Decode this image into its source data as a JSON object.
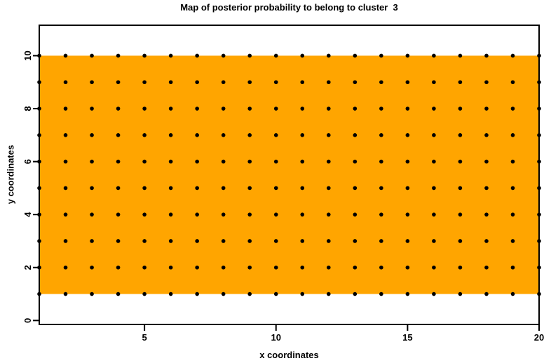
{
  "chart_data": {
    "type": "heatmap",
    "title": "Map of posterior probability to belong to cluster  3",
    "xlabel": "x coordinates",
    "ylabel": "y coordinates",
    "xlim": [
      1,
      20
    ],
    "ylim": [
      -0.15,
      11.15
    ],
    "x_ticks": [
      5,
      10,
      15,
      20
    ],
    "y_ticks": [
      0,
      2,
      4,
      6,
      8,
      10
    ],
    "grid": false,
    "legend": "none",
    "background_color": "#FFFFFF",
    "box_color": "#000000",
    "tick_color": "#000000",
    "text_color": "#000000",
    "heat_region": {
      "x_min": 1,
      "x_max": 20,
      "y_min": 1,
      "y_max": 10,
      "fill_color": "#FFA500"
    },
    "grid_points": {
      "x_min": 1,
      "x_max": 20,
      "x_step": 1,
      "y_min": 1,
      "y_max": 10,
      "y_step": 1,
      "count": 200,
      "marker": "filled-circle",
      "color": "#000000"
    }
  }
}
